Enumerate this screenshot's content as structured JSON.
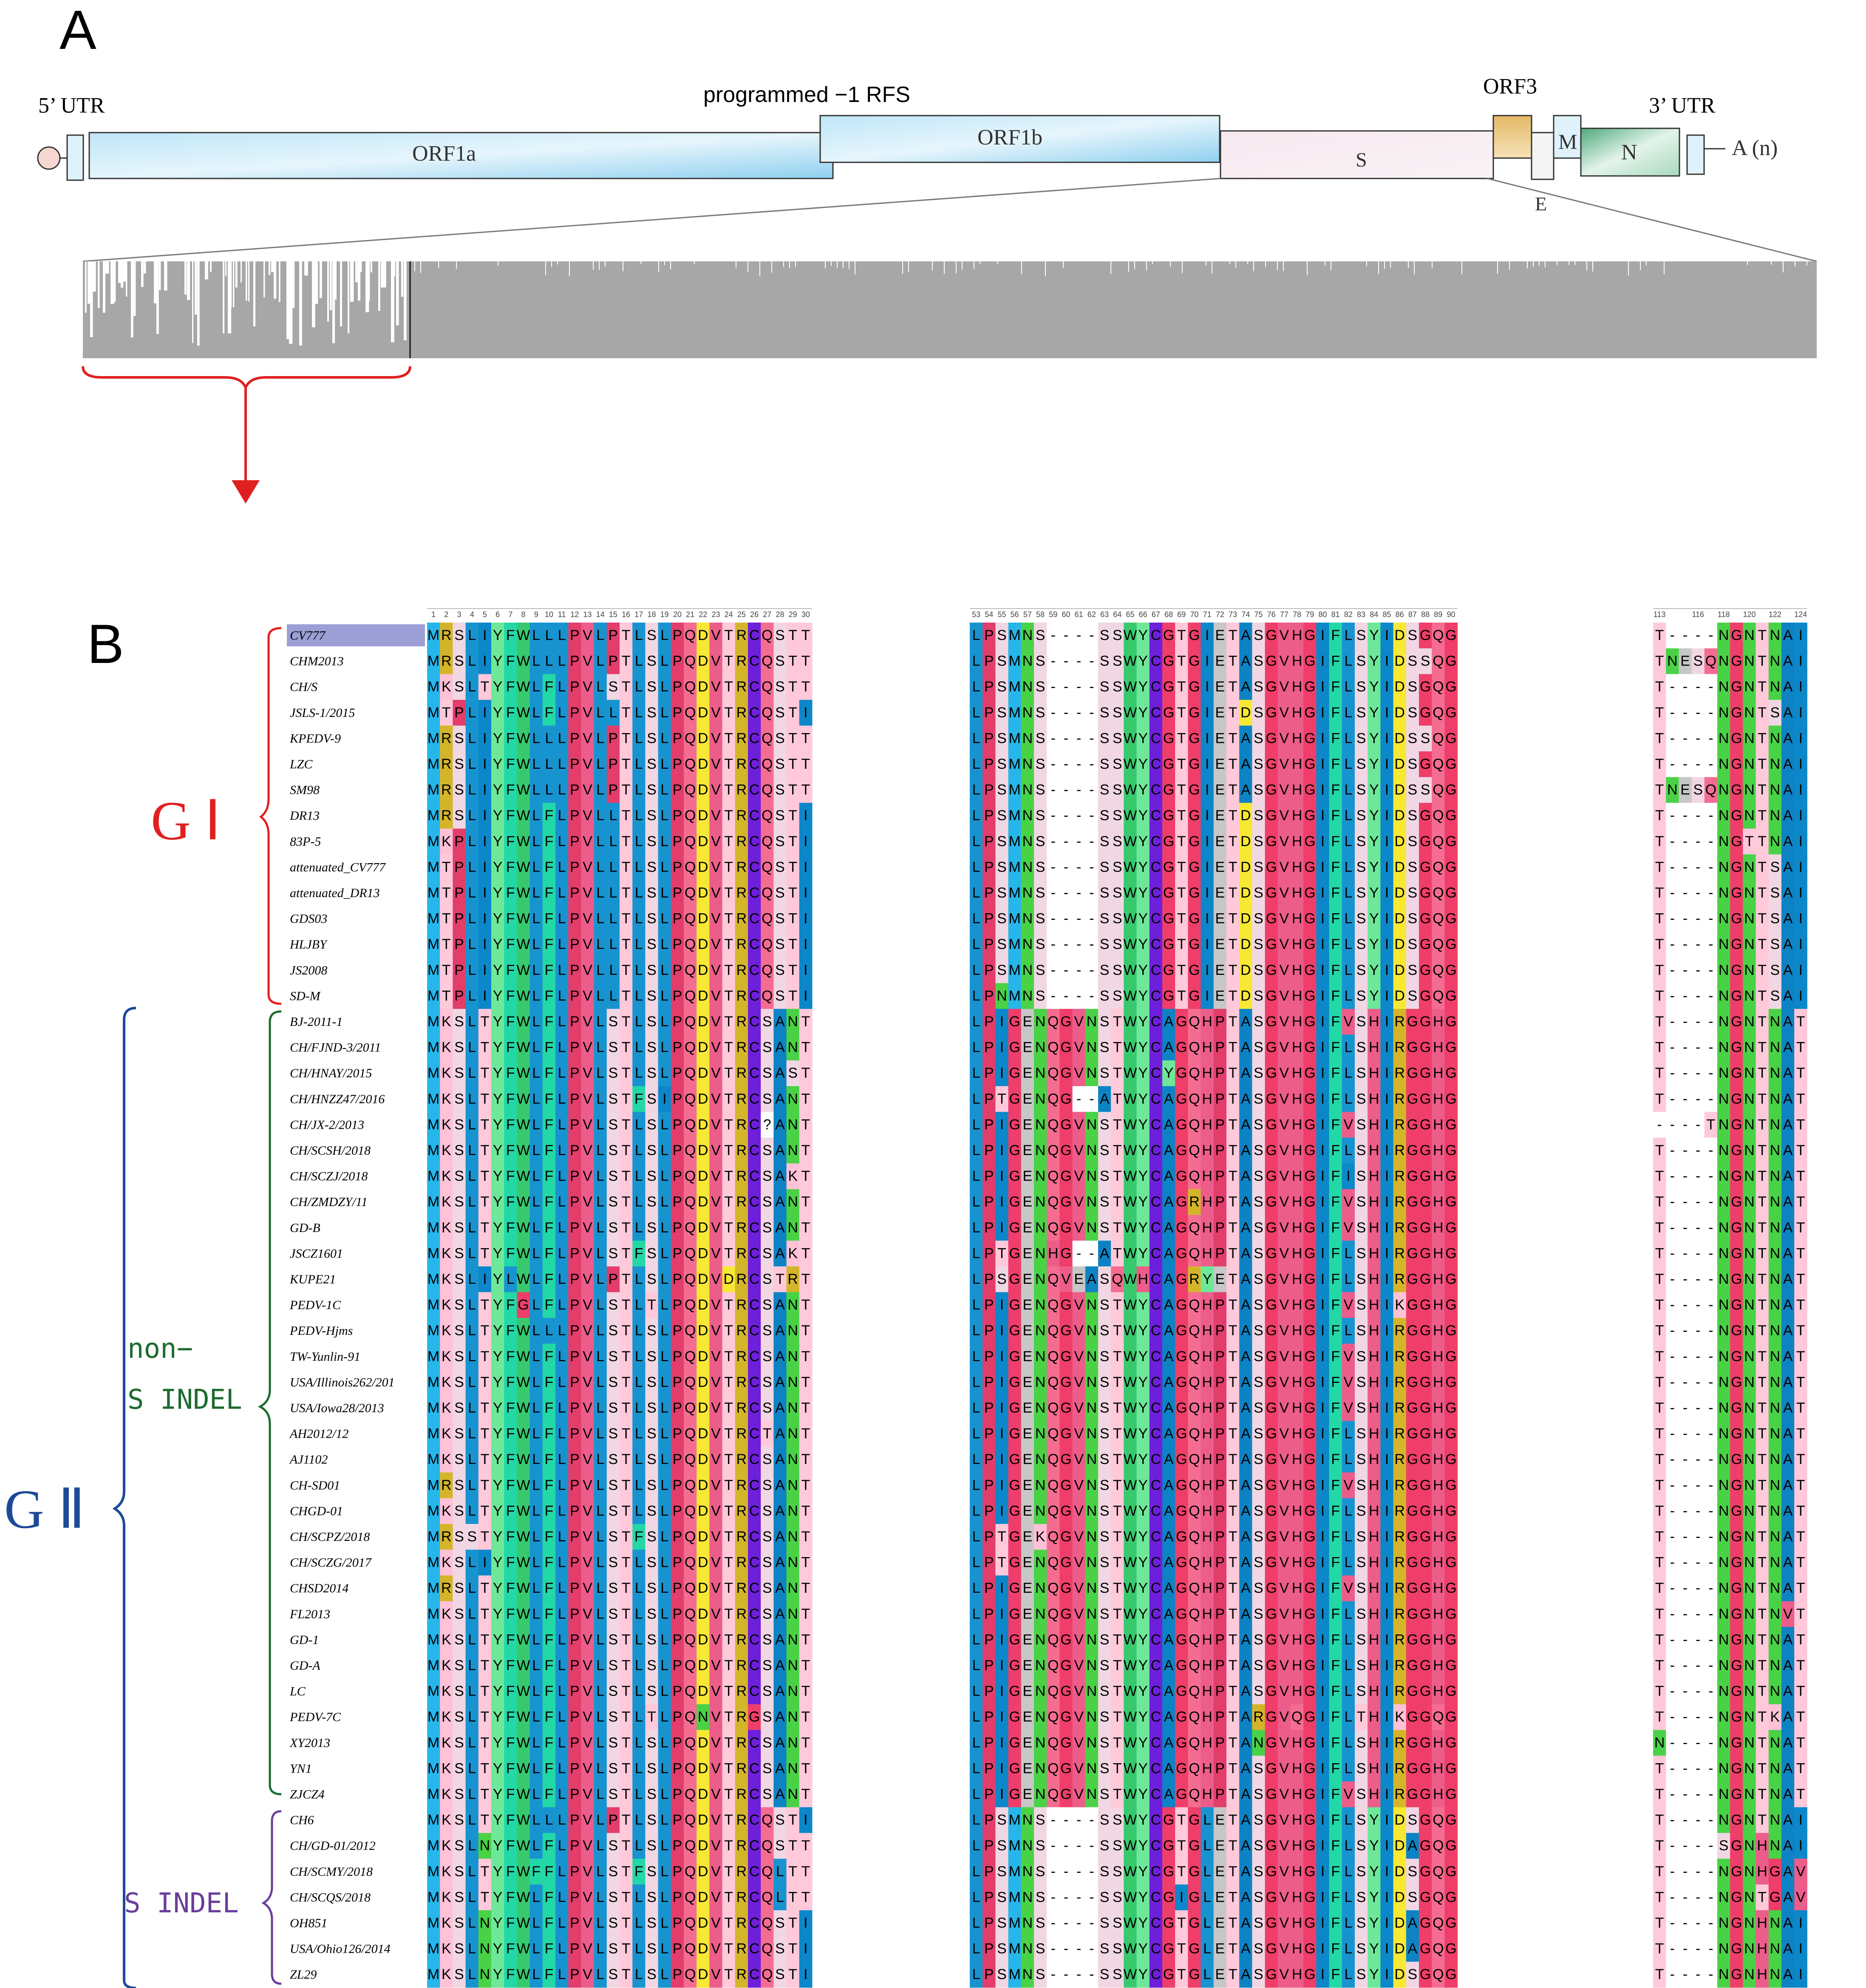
{
  "panel_a": {
    "label": "A",
    "utr5": "5’  UTR",
    "utr3": "3’  UTR",
    "rfs": "programmed −1 RFS",
    "genes": {
      "orf1a": "ORF1a",
      "orf1b": "ORF1b",
      "s": "S",
      "orf3": "ORF3",
      "e": "E",
      "m": "M",
      "n": "N"
    },
    "polya": "A  (n)"
  },
  "panel_b": {
    "label": "B",
    "groups": {
      "g1": "G Ⅰ",
      "g2": "G Ⅱ",
      "non_indel_1": "non−",
      "non_indel_2": "S INDEL",
      "s_indel": "S INDEL"
    },
    "ticks_block1": [
      "1",
      "2",
      "3",
      "4",
      "5",
      "6",
      "7",
      "8",
      "9",
      "10",
      "11",
      "12",
      "13",
      "14",
      "15",
      "16",
      "17",
      "18",
      "19",
      "20",
      "21",
      "22",
      "23",
      "24",
      "25",
      "26",
      "27",
      "28",
      "29",
      "30"
    ],
    "ticks_block2": [
      "53",
      "54",
      "55",
      "56",
      "57",
      "58",
      "59",
      "60",
      "61",
      "62",
      "63",
      "64",
      "65",
      "66",
      "67",
      "68",
      "69",
      "70",
      "71",
      "72",
      "73",
      "74",
      "75",
      "76",
      "77",
      "78",
      "79",
      "80",
      "81",
      "82",
      "83",
      "84",
      "85",
      "86",
      "87",
      "88",
      "89",
      "90"
    ],
    "ticks_block3": [
      "113",
      "116",
      "118",
      "120",
      "122",
      "124"
    ],
    "sequences": [
      {
        "name": "CV777",
        "b1": "MRSLIYFWLLLPVLPTLSLPQDVTRCQSTT",
        "b2": "LPSMNS----SSWYCGTGIETASGVHGIFLSYIDSGQG",
        "b3": "T----NGNTNAI"
      },
      {
        "name": "CHM2013",
        "b1": "MRSLIYFWLLLPVLPTLSLPQDVTRCQSTT",
        "b2": "LPSMNS----SSWYCGTGIETASGVHGIFLSYIDSSQG",
        "b3": "TNESQNGNTNAI"
      },
      {
        "name": "CH/S",
        "b1": "MKSLTYFWLFLPVLSTLSLPQDVTRCQSTT",
        "b2": "LPSMNS----SSWYCGTGIETASGVHGIFLSYIDSGQG",
        "b3": "T----NGNTNAI"
      },
      {
        "name": "JSLS-1/2015",
        "b1": "MTPLIYFWLFLPVLLTLSLPQDVTRCQSTI",
        "b2": "LPSMNS----SSWYCGTGIETDSGVHGIFLSYIDSGQG",
        "b3": "T----NGNTSAI"
      },
      {
        "name": "KPEDV-9",
        "b1": "MRSLIYFWLLLPVLPTLSLPQDVTRCQSTT",
        "b2": "LPSMNS----SSWYCGTGIETASGVHGIFLSYIDSSQG",
        "b3": "T----NGNTNAI"
      },
      {
        "name": "LZC",
        "b1": "MRSLIYFWLLLPVLPTLSLPQDVTRCQSTT",
        "b2": "LPSMNS----SSWYCGTGIETASGVHGIFLSYIDSGQG",
        "b3": "T----NGNTNAI"
      },
      {
        "name": "SM98",
        "b1": "MRSLIYFWLLLPVLPTLSLPQDVTRCQSTT",
        "b2": "LPSMNS----SSWYCGTGIETASGVHGIFLSYIDSSQG",
        "b3": "TNESQNGNTNAI"
      },
      {
        "name": "DR13",
        "b1": "MRSLIYFWLFLPVLLTLSLPQDVTRCQSTI",
        "b2": "LPSMNS----SSWYCGTGIETDSGVHGIFLSYIDSGQG",
        "b3": "T----NGNTNAI"
      },
      {
        "name": "83P-5",
        "b1": "MKPLIYFWLFLPVLLTLSLPQDVTRCQSTI",
        "b2": "LPSMNS----SSWYCGTGIETDSGVHGIFLSYIDSGQG",
        "b3": "T----NGTTNAI"
      },
      {
        "name": "attenuated_CV777",
        "b1": "MTPLIYFWLFLPVLLTLSLPQDVTRCQSTI",
        "b2": "LPSMNS----SSWYCGTGIETDSGVHGIFLSYIDSGQG",
        "b3": "T----NGNTSAI"
      },
      {
        "name": "attenuated_DR13",
        "b1": "MTPLIYFWLFLPVLLTLSLPQDVTRCQSTI",
        "b2": "LPSMNS----SSWYCGTGIETDSGVHGIFLSYIDSGQG",
        "b3": "T----NGNTSAI"
      },
      {
        "name": "GDS03",
        "b1": "MTPLIYFWLFLPVLLTLSLPQDVTRCQSTI",
        "b2": "LPSMNS----SSWYCGTGIETDSGVHGIFLSYIDSGQG",
        "b3": "T----NGNTSAI"
      },
      {
        "name": "HLJBY",
        "b1": "MTPLIYFWLFLPVLLTLSLPQDVTRCQSTI",
        "b2": "LPSMNS----SSWYCGTGIETDSGVHGIFLSYIDSGQG",
        "b3": "T----NGNTSAI"
      },
      {
        "name": "JS2008",
        "b1": "MTPLIYFWLFLPVLLTLSLPQDVTRCQSTI",
        "b2": "LPSMNS----SSWYCGTGIETDSGVHGIFLSYIDSGQG",
        "b3": "T----NGNTSAI"
      },
      {
        "name": "SD-M",
        "b1": "MTPLIYFWLFLPVLLTLSLPQDVTRCQSTI",
        "b2": "LPNMNS----SSWYCGTGIETDSGVHGIFLSYIDSGQG",
        "b3": "T----NGNTSAI"
      },
      {
        "name": "BJ-2011-1",
        "b1": "MKSLTYFWLFLPVLSTLSLPQDVTRCSANT",
        "b2": "LPIGENQGVNSTWYCAGQHPTASGVHGIFVSHIRGGHG",
        "b3": "T----NGNTNAT"
      },
      {
        "name": "CH/FJND-3/2011",
        "b1": "MKSLTYFWLFLPVLSTLSLPQDVTRCSANT",
        "b2": "LPIGENQGVNSTWYCAGQHPTASGVHGIFLSHIRGGHG",
        "b3": "T----NGNTNAT"
      },
      {
        "name": "CH/HNAY/2015",
        "b1": "MKSLTYFWLFLPVLSTLSLPQDVTRCSAST",
        "b2": "LPIGENQGVNSTWYCYGQHPTASGVHGIFLSHIRGGHG",
        "b3": "T----NGNTNAT"
      },
      {
        "name": "CH/HNZZ47/2016",
        "b1": "MKSLTYFWLFLPVLSTFSIPQDVTRCSANT",
        "b2": "LPTGENQG--ATWYCAGQHPTASGVHGIFLSHIRGGHG",
        "b3": "T----NGNTNAT"
      },
      {
        "name": "CH/JX-2/2013",
        "b1": "MKSLTYFWLFLPVLSTLSLPQDVTRC?ANT",
        "b2": "LPIGENQGVNSTWYCAGQHPTASGVHGIFVSHIRGGHG",
        "b3": "----TNGNTNAT"
      },
      {
        "name": "CH/SCSH/2018",
        "b1": "MKSLTYFWLFLPVLSTLSLPQDVTRCSANT",
        "b2": "LPIGENQGVNSTWYCAGQHPTASGVHGIFLSHIRGGHG",
        "b3": "T----NGNTNAT"
      },
      {
        "name": "CH/SCZJ/2018",
        "b1": "MKSLTYFWLFLPVLSTLSLPQDVTRCSAKT",
        "b2": "LPIGENQGVNSTWYCAGQHPTASGVHGIFISHIRGGHG",
        "b3": "T----NGNTNAT"
      },
      {
        "name": "CH/ZMDZY/11",
        "b1": "MKSLTYFWLFLPVLSTLSLPQDVTRCSANT",
        "b2": "LPIGENQGVNSTWYCAGRHPTASGVHGIFVSHIRGGHG",
        "b3": "T----NGNTNAT"
      },
      {
        "name": "GD-B",
        "b1": "MKSLTYFWLFLPVLSTLSLPQDVTRCSANT",
        "b2": "LPIGENQGVNSTWYCAGQHPTASGVHGIFVSHIRGGHG",
        "b3": "T----NGNTNAT"
      },
      {
        "name": "JSCZ1601",
        "b1": "MKSLTYFWLFLPVLSTFSLPQDVTRCSAKT",
        "b2": "LPTGENHG--ATWYCAGQHPTASGVHGIFLSHIRGGHG",
        "b3": "T----NGNTNAT"
      },
      {
        "name": "KUPE21",
        "b1": "MKSLIYLWLFLPVLPTLSLPQDVDRCSTRT",
        "b2": "LPSGENQVEASQWHCAGRYETASGVHGIFLSHIRGGHG",
        "b3": "T----NGNTNAT"
      },
      {
        "name": "PEDV-1C",
        "b1": "MKSLTYFGLFLPVLSTLTLPQDVTRCSANT",
        "b2": "LPIGENQGVNSTWYCAGQHPTASGVHGIFVSHIKGGHG",
        "b3": "T----NGNTNAT"
      },
      {
        "name": "PEDV-Hjms",
        "b1": "MKSLTYFWLLLPVLSTLSLPQDVTRCSANT",
        "b2": "LPIGENQGVNSTWYCAGQHPTASGVHGIFLSHIRGGHG",
        "b3": "T----NGNTNAT"
      },
      {
        "name": "TW-Yunlin-91",
        "b1": "MKSLTYFWLFLPVLSTLSLPQDVTRCSANT",
        "b2": "LPIGENQGVNSTWYCAGQHPTASGVHGIFVSHIRGGHG",
        "b3": "T----NGNTNAT"
      },
      {
        "name": "USA/Illinois262/201",
        "b1": "MKSLTYFWLFLPVLSTLSLPQDVTRCSANT",
        "b2": "LPIGENQGVNSTWYCAGQHPTASGVHGIFVSHIRGGHG",
        "b3": "T----NGNTNAT"
      },
      {
        "name": "USA/Iowa28/2013",
        "b1": "MKSLTYFWLFLPVLSTLSLPQDVTRCSANT",
        "b2": "LPIGENQGVNSTWYCAGQHPTASGVHGIFVSHIRGGHG",
        "b3": "T----NGNTNAT"
      },
      {
        "name": "AH2012/12",
        "b1": "MKSLTYFWLFLPVLSTLSLPQDVTRCTANT",
        "b2": "LPIGENQGVNSTWYCAGQHPTASGVHGIFLSHIRGGHG",
        "b3": "T----NGNTNAT"
      },
      {
        "name": "AJ1102",
        "b1": "MKSLTYFWLFLPVLSTLSLPQDVTRCSANT",
        "b2": "LPIGENQGVNSTWYCAGQHPTASGVHGIFLSHIRGGHG",
        "b3": "T----NGNTNAT"
      },
      {
        "name": "CH-SD01",
        "b1": "MRSLTYFWLFLPVLSTLSLPQDVTRCSANT",
        "b2": "LPIGENQGVNSTWYCAGQHPTASGVHGIFVSHIRGGHG",
        "b3": "T----NGNTNAT"
      },
      {
        "name": "CHGD-01",
        "b1": "MKSLTYFWLFLPVLSTLSLPQDVTRCSANT",
        "b2": "LPIGENQGVNSTWYCAGQHPTASGVHGIFLSHIRGGHG",
        "b3": "T----NGNTNAT"
      },
      {
        "name": "CH/SCPZ/2018",
        "b1": "MRSSTYFWLFLPVLSTFSLPQDVTRCSANT",
        "b2": "LPTGEKQGVNSTWYCAGQHPTASGVHGIFLSHIRGGHG",
        "b3": "T----NGNTNAT"
      },
      {
        "name": "CH/SCZG/2017",
        "b1": "MKSLIYFWLFLPVLSTLSLPQDVTRCSANT",
        "b2": "LPTGENQGVNSTWYCAGQHPTASGVHGIFLSHIRGGHG",
        "b3": "T----NGNTNAT"
      },
      {
        "name": "CHSD2014",
        "b1": "MRSLTYFWLFLPVLSTLSLPQDVTRCSANT",
        "b2": "LPIGENQGVNSTWYCAGQHPTASGVHGIFVSHIRGGHG",
        "b3": "T----NGNTNAT"
      },
      {
        "name": "FL2013",
        "b1": "MKSLTYFWLFLPVLSTLSLPQDVTRCSANT",
        "b2": "LPIGENQGVNSTWYCAGQHPTASGVHGIFLSHIRGGHG",
        "b3": "T----NGNTNVT"
      },
      {
        "name": "GD-1",
        "b1": "MKSLTYFWLFLPVLSTLSLPQDVTRCSANT",
        "b2": "LPIGENQGVNSTWYCAGQHPTASGVHGIFLSHIRGGHG",
        "b3": "T----NGNTNAT"
      },
      {
        "name": "GD-A",
        "b1": "MKSLTYFWLFLPVLSTLSLPQDVTRCSANT",
        "b2": "LPIGENQGVNSTWYCAGQHPTASGVHGIFLSHIRGGHG",
        "b3": "T----NGNTNAT"
      },
      {
        "name": "LC",
        "b1": "MKSLTYFWLFLPVLSTLSLPQDVTRCSANT",
        "b2": "LPIGENQGVNSTWYCAGQHPTASGVHGIFLSHIRGGHG",
        "b3": "T----NGNTNAT"
      },
      {
        "name": "PEDV-7C",
        "b1": "MKSLTYFWLFLPVLSTLTLPQNVTRGSANT",
        "b2": "LPIGENQGVNSTWYCAGQHPTARGVQGIFLTHIKGGQG",
        "b3": "T----NGNTKAT"
      },
      {
        "name": "XY2013",
        "b1": "MKSLTYFWLFLPVLSTLSLPQDVTRCSANT",
        "b2": "LPIGENQGVNSTWYCAGQHPTANGVHGIFLSHIRGGHG",
        "b3": "N----NGNTNAT"
      },
      {
        "name": "YN1",
        "b1": "MKSLTYFWLFLPVLSTLSLPQDVTRCSANT",
        "b2": "LPIGENQGVNSTWYCAGQHPTASGVHGIFLSHIRGGHG",
        "b3": "T----NGNTNAT"
      },
      {
        "name": "ZJCZ4",
        "b1": "MKSLTYFWLFLPVLSTLSLPQDVTRCSANT",
        "b2": "LPIGENQGVNSTWYCAGQHPTASGVHGIFVSHIRGGHG",
        "b3": "T----NGNTNAT"
      },
      {
        "name": "CH6",
        "b1": "MKSLTYFWLLLPVLPTLSLPQDVTRCQSTI",
        "b2": "LPSMNS----SSWYCGTGLETASGVHGIFLSYIDSGQG",
        "b3": "T----NGNTNAI"
      },
      {
        "name": "CH/GD-01/2012",
        "b1": "MKSLNYFWLFLPVLSTLSLPQDVTRCQSTT",
        "b2": "LPSMNS----SSWYCGTGLETASGVHGIFLSYIDAGQG",
        "b3": "T----SGNHNAI"
      },
      {
        "name": "CH/SCMY/2018",
        "b1": "MKSLTYFWFFLPVLSTFSLPQDVTRCQLTT",
        "b2": "LPSMNS----SSWYCGTGLETASGVHGIFLSYIDSGQG",
        "b3": "T----NGNHGAV"
      },
      {
        "name": "CH/SCQS/2018",
        "b1": "MKSLTYFWLFLPVLSTLSLPQDVTRCQLTT",
        "b2": "LPSMNS----SSWYCGIGLETASGVHGIFLSYIDSGQG",
        "b3": "T----NGNTGAV"
      },
      {
        "name": "OH851",
        "b1": "MKSLNYFWLFLPVLSTLSLPQDVTRCQSTI",
        "b2": "LPSMNS----SSWYCGTGLETASGVHGIFLSYIDAGQG",
        "b3": "T----NGNHNAI"
      },
      {
        "name": "USA/Ohio126/2014",
        "b1": "MKSLNYFWLFLPVLSTLSLPQDVTRCQSTI",
        "b2": "LPSMNS----SSWYCGTGLETASGVHGIFLSYIDAGQG",
        "b3": "T----NGNHNAI"
      },
      {
        "name": "ZL29",
        "b1": "MKSLNYFWLFLPVLSTLSLPQDVTRCQSTI",
        "b2": "LPSMNS----SSWYCGTGLETASGVHGIFLSYIDSGQG",
        "b3": "T----NGNHNAI"
      }
    ],
    "colors": {
      "M": "#27b6ea",
      "K": "#ffc1d6",
      "R": "#d4b52a",
      "S": "#f0d7e3",
      "L": "#1794d0",
      "I": "#0c87c9",
      "Y": "#6ee898",
      "F": "#23d8a7",
      "W": "#38c96e",
      "P": "#e23d6b",
      "V": "#ec5d8a",
      "T": "#ffc9da",
      "Q": "#f46d91",
      "D": "#f7e834",
      "C": "#6e1fdc",
      "N": "#4ad247",
      "G": "#ef3e69",
      "E": "#c7c7c7",
      "H": "#ec5d8a",
      "A": "#0d83c4",
      "?": "#ffffff",
      "-": "#ffffff"
    }
  }
}
